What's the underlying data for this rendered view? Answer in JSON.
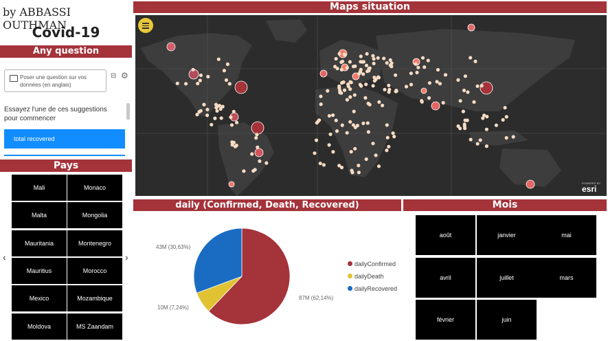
{
  "header": {
    "author": "by ABBASSI OUTHMAN",
    "title": "Covid-19"
  },
  "qa": {
    "banner": "Any question",
    "placeholder": "Poser une question sur vos données (en anglais)",
    "hint": "Essayez l'une de ces suggestions pour commencer",
    "suggestion": "total recovered"
  },
  "pays": {
    "banner": "Pays",
    "items": [
      "Mali",
      "Monaco",
      "Malta",
      "Mongolia",
      "Mauritania",
      "Montenegro",
      "Mauritius",
      "Morocco",
      "Mexico",
      "Mozambique",
      "Moldova",
      "MS Zaandam"
    ]
  },
  "map": {
    "banner": "Maps situation",
    "provider": "esri",
    "powered": "POWERED BY"
  },
  "daily": {
    "banner": "daily (Confirmed, Death, Recovered)",
    "legend": [
      "dailyConfirmed",
      "dailyDeath",
      "dailyRecovered"
    ],
    "labels": [
      "87M (62,14%)",
      "10M (7,24%)",
      "43M (30,63%)"
    ]
  },
  "chart_data": {
    "type": "pie",
    "categories": [
      "dailyConfirmed",
      "dailyDeath",
      "dailyRecovered"
    ],
    "values": [
      62.14,
      7.24,
      30.63
    ],
    "data_labels": [
      "87M (62,14%)",
      "10M (7,24%)",
      "43M (30,63%)"
    ],
    "colors": [
      "#a4333a",
      "#e1c233",
      "#1a6cc2"
    ],
    "legend_position": "right"
  },
  "mois": {
    "banner": "Mois",
    "items": [
      "août",
      "janvier",
      "mai",
      "avril",
      "juillet",
      "mars",
      "février",
      "juin"
    ]
  },
  "colors": {
    "accent": "#a4333a",
    "selected": "#118dff",
    "map_bg": "#2c2c2c"
  }
}
